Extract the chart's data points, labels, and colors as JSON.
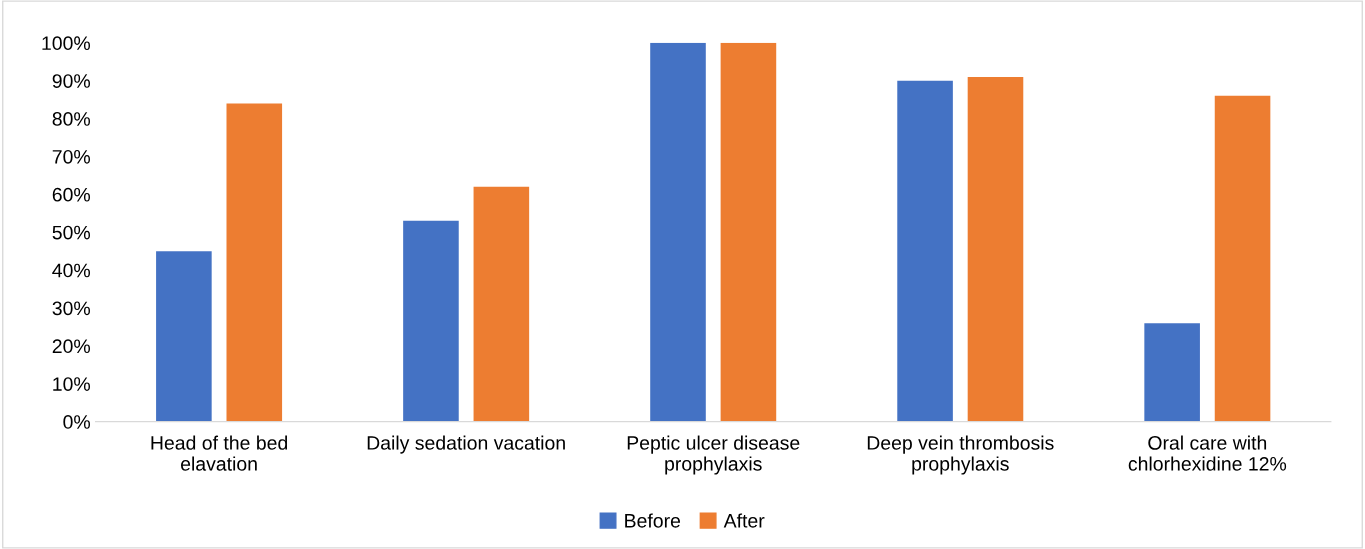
{
  "chart_data": {
    "type": "bar",
    "categories": [
      "Head of the bed\nelavation",
      "Daily sedation vacation",
      "Peptic ulcer disease\nprophylaxis",
      "Deep vein thrombosis\nprophylaxis",
      "Oral care with\nchlorhexidine 12%"
    ],
    "series": [
      {
        "name": "Before",
        "color": "#4472c4",
        "values": [
          45,
          53,
          100,
          90,
          26
        ]
      },
      {
        "name": "After",
        "color": "#ed7d31",
        "values": [
          84,
          62,
          100,
          91,
          86
        ]
      }
    ],
    "ylim": [
      0,
      100
    ],
    "yticks": [
      {
        "value": 0,
        "label": "0%"
      },
      {
        "value": 10,
        "label": "10%"
      },
      {
        "value": 20,
        "label": "20%"
      },
      {
        "value": 30,
        "label": "30%"
      },
      {
        "value": 40,
        "label": "40%"
      },
      {
        "value": 50,
        "label": "50%"
      },
      {
        "value": 60,
        "label": "60%"
      },
      {
        "value": 70,
        "label": "70%"
      },
      {
        "value": 80,
        "label": "80%"
      },
      {
        "value": 90,
        "label": "90%"
      },
      {
        "value": 100,
        "label": "100%"
      }
    ],
    "grid": false,
    "legend": "bottom"
  }
}
